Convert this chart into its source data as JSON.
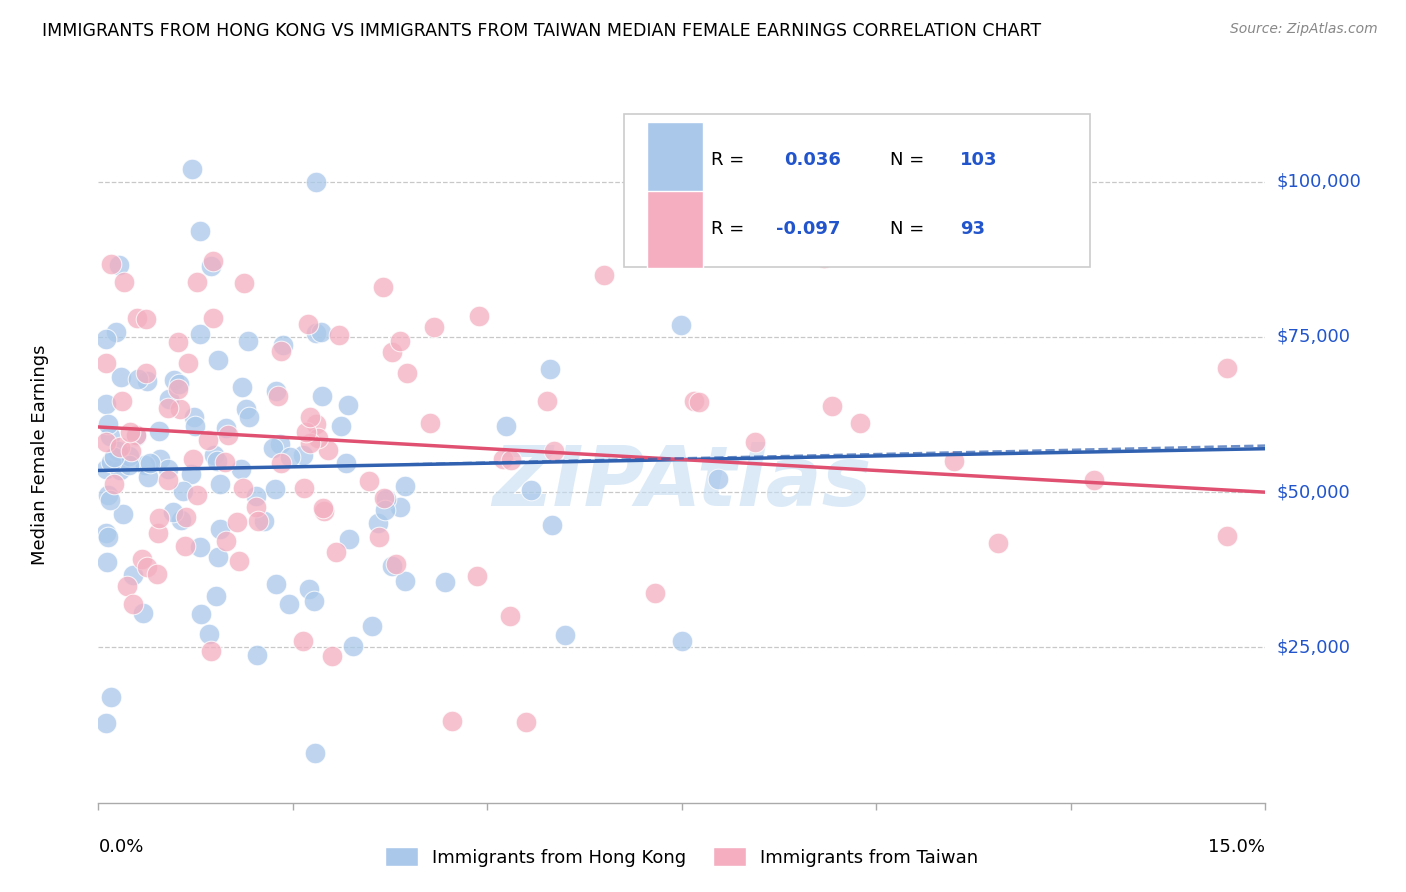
{
  "title": "IMMIGRANTS FROM HONG KONG VS IMMIGRANTS FROM TAIWAN MEDIAN FEMALE EARNINGS CORRELATION CHART",
  "source": "Source: ZipAtlas.com",
  "ylabel": "Median Female Earnings",
  "ytick_labels": [
    "$25,000",
    "$50,000",
    "$75,000",
    "$100,000"
  ],
  "ytick_values": [
    25000,
    50000,
    75000,
    100000
  ],
  "ylim": [
    0,
    112000
  ],
  "xlim": [
    0.0,
    0.15
  ],
  "hk_label": "Immigrants from Hong Kong",
  "tw_label": "Immigrants from Taiwan",
  "hk_R": "0.036",
  "hk_N": "103",
  "tw_R": "-0.097",
  "tw_N": "93",
  "hk_color": "#aac8ea",
  "tw_color": "#f4aec0",
  "hk_line_color": "#3060b0",
  "tw_line_color": "#e05070",
  "label_color": "#2255cc",
  "grid_color": "#c8c8c8",
  "background_color": "#ffffff",
  "watermark": "ZIPAtlas",
  "watermark_color": "#c5ddf4"
}
